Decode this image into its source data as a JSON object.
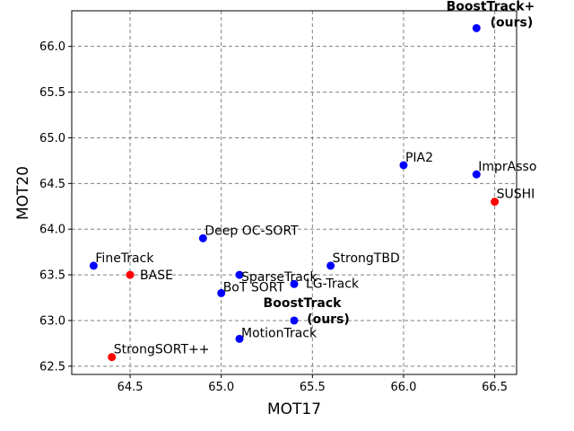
{
  "chart_data": {
    "type": "scatter",
    "xlabel": "MOT17",
    "ylabel": "MOT20",
    "xlim": [
      64.18,
      66.62
    ],
    "ylim": [
      62.41,
      66.39
    ],
    "xticks": [
      64.5,
      65.0,
      65.5,
      66.0,
      66.5
    ],
    "yticks": [
      62.5,
      63.0,
      63.5,
      64.0,
      64.5,
      65.0,
      65.5,
      66.0
    ],
    "xtick_labels": [
      "64.5",
      "65.0",
      "65.5",
      "66.0",
      "66.5"
    ],
    "ytick_labels": [
      "62.5",
      "63.0",
      "63.5",
      "64.0",
      "64.5",
      "65.0",
      "65.5",
      "66.0"
    ],
    "grid": true,
    "colors": {
      "blue": "#0000ff",
      "red": "#ff0000"
    },
    "points": [
      {
        "label": "BoostTrack+ (ours)",
        "lines": [
          "BoostTrack+",
          "(ours)"
        ],
        "x": 66.4,
        "y": 66.2,
        "color": "blue",
        "bold": true
      },
      {
        "label": "PIA2",
        "lines": [
          "PIA2"
        ],
        "x": 66.0,
        "y": 64.7,
        "color": "blue",
        "bold": false
      },
      {
        "label": "ImprAsso",
        "lines": [
          "ImprAsso"
        ],
        "x": 66.4,
        "y": 64.6,
        "color": "blue",
        "bold": false
      },
      {
        "label": "SUSHI",
        "lines": [
          "SUSHI"
        ],
        "x": 66.5,
        "y": 64.3,
        "color": "red",
        "bold": false
      },
      {
        "label": "Deep OC-SORT",
        "lines": [
          "Deep OC-SORT"
        ],
        "x": 64.9,
        "y": 63.9,
        "color": "blue",
        "bold": false
      },
      {
        "label": "FineTrack",
        "lines": [
          "FineTrack"
        ],
        "x": 64.3,
        "y": 63.6,
        "color": "blue",
        "bold": false
      },
      {
        "label": "BASE",
        "lines": [
          "BASE"
        ],
        "x": 64.5,
        "y": 63.5,
        "color": "red",
        "bold": false
      },
      {
        "label": "StrongTBD",
        "lines": [
          "StrongTBD"
        ],
        "x": 65.6,
        "y": 63.6,
        "color": "blue",
        "bold": false
      },
      {
        "label": "SparseTrack",
        "lines": [
          "SparseTrack"
        ],
        "x": 65.1,
        "y": 63.5,
        "color": "blue",
        "bold": false
      },
      {
        "label": "LG-Track",
        "lines": [
          "LG-Track"
        ],
        "x": 65.4,
        "y": 63.4,
        "color": "blue",
        "bold": false
      },
      {
        "label": "BoT SORT",
        "lines": [
          "BoT SORT"
        ],
        "x": 65.0,
        "y": 63.3,
        "color": "blue",
        "bold": false
      },
      {
        "label": "BoostTrack (ours)",
        "lines": [
          "BoostTrack",
          "(ours)"
        ],
        "x": 65.4,
        "y": 63.0,
        "color": "blue",
        "bold": true
      },
      {
        "label": "MotionTrack",
        "lines": [
          "MotionTrack"
        ],
        "x": 65.1,
        "y": 62.8,
        "color": "blue",
        "bold": false
      },
      {
        "label": "StrongSORT++",
        "lines": [
          "StrongSORT++"
        ],
        "x": 64.4,
        "y": 62.6,
        "color": "red",
        "bold": false
      }
    ]
  }
}
